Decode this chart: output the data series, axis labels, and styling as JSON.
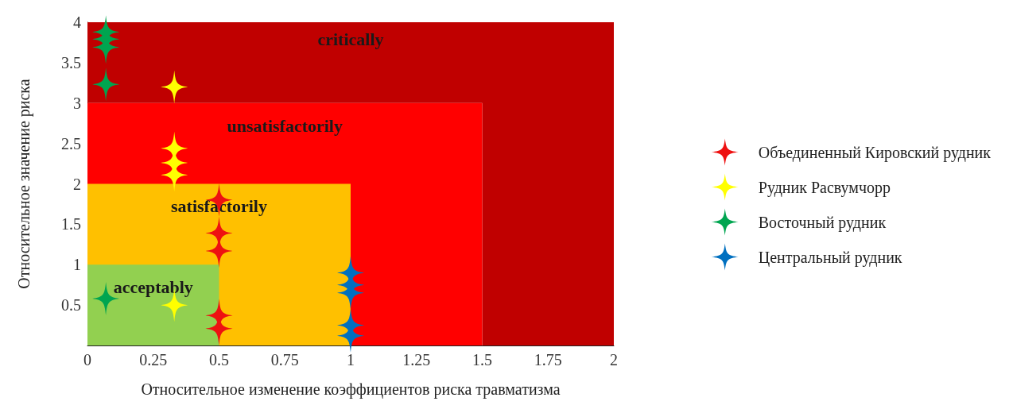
{
  "chart_data": {
    "type": "scatter",
    "xlabel": "Относительное изменение коэффициентов риска травматизма",
    "ylabel": "Относительное значение риска",
    "xlim": [
      0,
      2
    ],
    "xticks": [
      0,
      0.25,
      0.5,
      0.75,
      1,
      1.25,
      1.5,
      1.75,
      2
    ],
    "ylim": [
      0,
      4
    ],
    "yticks": [
      0.5,
      1,
      1.5,
      2,
      2.5,
      3,
      3.5,
      4
    ],
    "legend": "right",
    "marker": "star",
    "bands": [
      {
        "axis": "y",
        "from": 3,
        "to": 4,
        "color": "#c00000",
        "label": "critically"
      },
      {
        "axis": "x",
        "from": 1.5,
        "to": 2,
        "color": "#c00000"
      }
    ],
    "series": [
      {
        "type": "area",
        "name": "unsatisfactorily",
        "marker": "none",
        "color": "#ff0000",
        "x": [
          0,
          1.5
        ],
        "values": [
          3,
          3
        ]
      },
      {
        "type": "area",
        "name": "satisfactorily",
        "marker": "none",
        "color": "#ffc000",
        "x": [
          0,
          1
        ],
        "values": [
          2,
          2
        ]
      },
      {
        "type": "area",
        "name": "acceptably",
        "marker": "none",
        "color": "#92d050",
        "x": [
          0,
          0.5
        ],
        "values": [
          1,
          1
        ]
      },
      {
        "name": "Объединенный Кировский рудник",
        "color": "#ee1111",
        "x": [
          0.5,
          0.5,
          0.5,
          0.5,
          0.5
        ],
        "values": [
          1.8,
          1.39,
          1.17,
          0.37,
          0.21
        ]
      },
      {
        "name": "Рудник Расвумчорр",
        "color": "#ffff00",
        "x": [
          0.33,
          0.33,
          0.33,
          0.33,
          0.33
        ],
        "values": [
          3.2,
          2.44,
          2.26,
          2.11,
          0.5
        ]
      },
      {
        "name": "Восточный рудник",
        "color": "#00a550",
        "x": [
          0.07,
          0.07,
          0.07,
          0.07,
          0.07
        ],
        "values": [
          3.88,
          3.79,
          3.69,
          3.23,
          0.58
        ]
      },
      {
        "name": "Центральный рудник",
        "color": "#0070c0",
        "x": [
          1,
          1,
          1,
          1,
          1
        ],
        "values": [
          0.9,
          0.75,
          0.65,
          0.25,
          0.12
        ]
      }
    ]
  }
}
